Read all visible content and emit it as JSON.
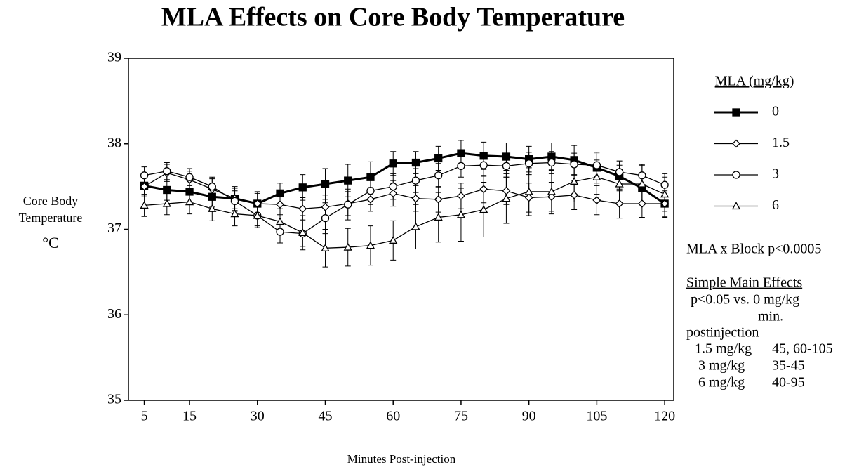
{
  "chart_data": {
    "type": "line",
    "title": "MLA Effects on Core Body Temperature",
    "x_label": "Minutes Post-injection",
    "y_label": [
      "Core Body",
      "Temperature",
      "°C"
    ],
    "x": [
      5,
      10,
      15,
      20,
      25,
      30,
      35,
      40,
      45,
      50,
      55,
      60,
      65,
      70,
      75,
      80,
      85,
      90,
      95,
      100,
      105,
      110,
      115,
      120
    ],
    "xlim": [
      1.5,
      122
    ],
    "xticks": [
      5,
      15,
      30,
      45,
      60,
      75,
      90,
      105,
      120
    ],
    "ylim": [
      35,
      39
    ],
    "yticks": [
      35,
      36,
      37,
      38,
      39
    ],
    "legend_title": "MLA (mg/kg)",
    "series": [
      {
        "name": "0",
        "color": "#000000",
        "marker": "square-filled",
        "line_width": 3,
        "values": [
          37.51,
          37.46,
          37.44,
          37.38,
          37.36,
          37.3,
          37.42,
          37.49,
          37.53,
          37.57,
          37.61,
          37.77,
          37.78,
          37.83,
          37.89,
          37.86,
          37.85,
          37.82,
          37.85,
          37.81,
          37.72,
          37.62,
          37.48,
          37.3
        ],
        "errors": [
          0.13,
          0.12,
          0.12,
          0.12,
          0.14,
          0.14,
          0.12,
          0.15,
          0.18,
          0.19,
          0.18,
          0.14,
          0.13,
          0.14,
          0.15,
          0.16,
          0.16,
          0.15,
          0.16,
          0.17,
          0.18,
          0.17,
          0.17,
          0.15
        ]
      },
      {
        "name": "1.5",
        "color": "#000000",
        "marker": "diamond",
        "line_width": 1.3,
        "values": [
          37.5,
          37.66,
          37.58,
          37.47,
          37.36,
          37.3,
          37.29,
          37.24,
          37.26,
          37.3,
          37.35,
          37.42,
          37.36,
          37.35,
          37.39,
          37.47,
          37.45,
          37.37,
          37.38,
          37.4,
          37.34,
          37.3,
          37.3,
          37.3
        ],
        "errors": [
          0.1,
          0.1,
          0.1,
          0.12,
          0.12,
          0.12,
          0.12,
          0.13,
          0.14,
          0.14,
          0.14,
          0.15,
          0.15,
          0.15,
          0.15,
          0.16,
          0.16,
          0.17,
          0.17,
          0.17,
          0.17,
          0.17,
          0.16,
          0.16
        ]
      },
      {
        "name": "3",
        "color": "#000000",
        "marker": "circle",
        "line_width": 1.3,
        "values": [
          37.63,
          37.68,
          37.61,
          37.5,
          37.33,
          37.16,
          36.97,
          36.95,
          37.13,
          37.29,
          37.45,
          37.5,
          37.57,
          37.63,
          37.74,
          37.75,
          37.74,
          37.77,
          37.78,
          37.76,
          37.75,
          37.67,
          37.63,
          37.52
        ],
        "errors": [
          0.1,
          0.1,
          0.1,
          0.11,
          0.12,
          0.12,
          0.13,
          0.15,
          0.18,
          0.18,
          0.16,
          0.15,
          0.14,
          0.14,
          0.13,
          0.13,
          0.13,
          0.13,
          0.13,
          0.13,
          0.13,
          0.13,
          0.13,
          0.13
        ]
      },
      {
        "name": "6",
        "color": "#000000",
        "marker": "triangle",
        "line_width": 1.3,
        "values": [
          37.28,
          37.3,
          37.32,
          37.24,
          37.18,
          37.16,
          37.09,
          36.96,
          36.78,
          36.79,
          36.81,
          36.87,
          37.03,
          37.14,
          37.17,
          37.23,
          37.36,
          37.44,
          37.44,
          37.56,
          37.61,
          37.53,
          37.53,
          37.41
        ],
        "errors": [
          0.13,
          0.13,
          0.14,
          0.14,
          0.14,
          0.14,
          0.15,
          0.2,
          0.22,
          0.22,
          0.23,
          0.23,
          0.26,
          0.29,
          0.31,
          0.32,
          0.29,
          0.28,
          0.26,
          0.24,
          0.2,
          0.22,
          0.22,
          0.2
        ]
      }
    ],
    "annotations": {
      "interaction": "MLA x Block p<0.0005",
      "heading": "Simple Main Effects",
      "lines": [
        "p<0.05 vs. 0 mg/kg",
        "min.",
        "postinjection"
      ],
      "rows": [
        [
          "1.5 mg/kg",
          "45, 60-105"
        ],
        [
          "3 mg/kg",
          "35-45"
        ],
        [
          "6 mg/kg",
          "40-95"
        ]
      ]
    }
  }
}
